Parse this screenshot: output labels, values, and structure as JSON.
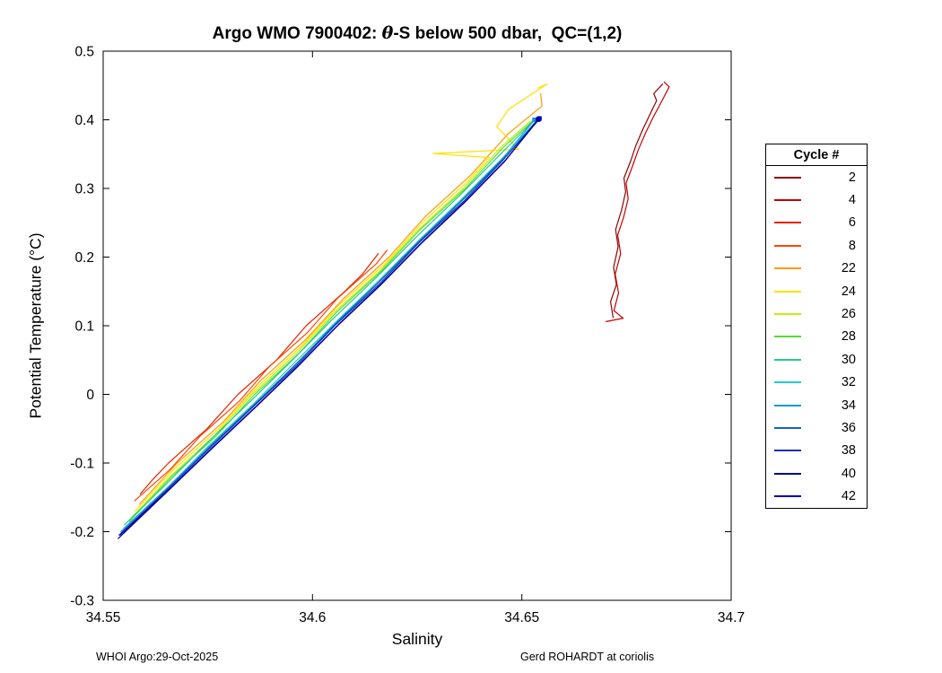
{
  "title": {
    "prefix": "Argo WMO 7900402: ",
    "theta": "θ",
    "suffix": "-S below 500 dbar,  QC=(1,2)"
  },
  "footer": {
    "left": "WHOI Argo:29-Oct-2025",
    "right": "Gerd ROHARDT at coriolis"
  },
  "chart_data": {
    "type": "line",
    "title": "Argo WMO 7900402: θ-S below 500 dbar,  QC=(1,2)",
    "xlabel": "Salinity",
    "ylabel": "Potential Temperature (°C)",
    "xlim": [
      34.55,
      34.7
    ],
    "ylim": [
      -0.3,
      0.5
    ],
    "xticks": [
      34.55,
      34.6,
      34.65,
      34.7
    ],
    "xtick_labels": [
      "34.55",
      "34.6",
      "34.65",
      "34.7"
    ],
    "yticks": [
      -0.3,
      -0.2,
      -0.1,
      0,
      0.1,
      0.2,
      0.3,
      0.4,
      0.5
    ],
    "ytick_labels": [
      "-0.3",
      "-0.2",
      "-0.1",
      "0",
      "0.1",
      "0.2",
      "0.3",
      "0.4",
      "0.5"
    ],
    "grid": false,
    "box": true,
    "legend": {
      "title": "Cycle #",
      "position": "right-outside"
    },
    "series": [
      {
        "name": "2",
        "color": "#8F0000",
        "marker_end": false,
        "points": [
          [
            34.6718,
            0.112
          ],
          [
            34.6712,
            0.135
          ],
          [
            34.6726,
            0.16
          ],
          [
            34.6719,
            0.185
          ],
          [
            34.673,
            0.215
          ],
          [
            34.6724,
            0.24
          ],
          [
            34.6738,
            0.268
          ],
          [
            34.6748,
            0.295
          ],
          [
            34.6744,
            0.315
          ],
          [
            34.676,
            0.34
          ],
          [
            34.6772,
            0.362
          ],
          [
            34.6788,
            0.385
          ],
          [
            34.6806,
            0.408
          ],
          [
            34.6822,
            0.428
          ],
          [
            34.6815,
            0.438
          ],
          [
            34.6836,
            0.452
          ]
        ]
      },
      {
        "name": "4",
        "color": "#C40000",
        "marker_end": false,
        "points": [
          [
            34.6701,
            0.106
          ],
          [
            34.6742,
            0.111
          ],
          [
            34.672,
            0.122
          ],
          [
            34.6731,
            0.148
          ],
          [
            34.6723,
            0.175
          ],
          [
            34.6736,
            0.205
          ],
          [
            34.6729,
            0.232
          ],
          [
            34.6743,
            0.258
          ],
          [
            34.6754,
            0.285
          ],
          [
            34.6749,
            0.308
          ],
          [
            34.6764,
            0.332
          ],
          [
            34.6778,
            0.356
          ],
          [
            34.6795,
            0.38
          ],
          [
            34.6814,
            0.404
          ],
          [
            34.6835,
            0.428
          ],
          [
            34.6852,
            0.448
          ],
          [
            34.684,
            0.455
          ]
        ]
      },
      {
        "name": "6",
        "color": "#E62200",
        "marker_end": false,
        "points": [
          [
            34.5589,
            -0.145
          ],
          [
            34.5617,
            -0.125
          ],
          [
            34.5656,
            -0.1
          ],
          [
            34.5748,
            -0.05
          ],
          [
            34.5822,
            0.0
          ],
          [
            34.5914,
            0.05
          ],
          [
            34.5985,
            0.1
          ],
          [
            34.6077,
            0.15
          ],
          [
            34.6119,
            0.175
          ],
          [
            34.6157,
            0.205
          ]
        ]
      },
      {
        "name": "8",
        "color": "#FF4400",
        "marker_end": false,
        "points": [
          [
            34.5575,
            -0.155
          ],
          [
            34.5659,
            -0.11
          ],
          [
            34.5733,
            -0.06
          ],
          [
            34.5825,
            -0.01
          ],
          [
            34.5896,
            0.04
          ],
          [
            34.5988,
            0.09
          ],
          [
            34.606,
            0.14
          ],
          [
            34.6152,
            0.19
          ],
          [
            34.6178,
            0.21
          ]
        ]
      },
      {
        "name": "22",
        "color": "#FF9900",
        "marker_end": false,
        "points": [
          [
            34.5587,
            -0.16
          ],
          [
            34.5677,
            -0.1
          ],
          [
            34.5787,
            -0.04
          ],
          [
            34.5876,
            0.02
          ],
          [
            34.5984,
            0.08
          ],
          [
            34.6075,
            0.14
          ],
          [
            34.6183,
            0.2
          ],
          [
            34.6271,
            0.26
          ],
          [
            34.6379,
            0.32
          ],
          [
            34.6468,
            0.38
          ],
          [
            34.6548,
            0.42
          ],
          [
            34.6545,
            0.438
          ]
        ]
      },
      {
        "name": "24",
        "color": "#FFE100",
        "marker_end": false,
        "points": [
          [
            34.5576,
            -0.17
          ],
          [
            34.5668,
            -0.11
          ],
          [
            34.5776,
            -0.05
          ],
          [
            34.5867,
            0.01
          ],
          [
            34.5973,
            0.07
          ],
          [
            34.6063,
            0.13
          ],
          [
            34.6173,
            0.19
          ],
          [
            34.6262,
            0.25
          ],
          [
            34.637,
            0.31
          ],
          [
            34.6422,
            0.345
          ],
          [
            34.6288,
            0.351
          ],
          [
            34.6492,
            0.357
          ],
          [
            34.644,
            0.39
          ],
          [
            34.6468,
            0.415
          ],
          [
            34.653,
            0.44
          ],
          [
            34.656,
            0.452
          ],
          [
            34.6538,
            0.446
          ]
        ]
      },
      {
        "name": "26",
        "color": "#BFEE11",
        "marker_end": false,
        "points": [
          [
            34.5567,
            -0.18
          ],
          [
            34.5659,
            -0.12
          ],
          [
            34.5766,
            -0.06
          ],
          [
            34.5856,
            0.0
          ],
          [
            34.5962,
            0.06
          ],
          [
            34.6053,
            0.12
          ],
          [
            34.6161,
            0.18
          ],
          [
            34.6253,
            0.24
          ],
          [
            34.636,
            0.3
          ],
          [
            34.645,
            0.36
          ],
          [
            34.652,
            0.398
          ]
        ]
      },
      {
        "name": "28",
        "color": "#55DD33",
        "marker_end": false,
        "points": [
          [
            34.5563,
            -0.185
          ],
          [
            34.5663,
            -0.12
          ],
          [
            34.5771,
            -0.06
          ],
          [
            34.5862,
            0.0
          ],
          [
            34.5968,
            0.06
          ],
          [
            34.6058,
            0.12
          ],
          [
            34.6165,
            0.18
          ],
          [
            34.6257,
            0.24
          ],
          [
            34.6365,
            0.3
          ],
          [
            34.6456,
            0.36
          ],
          [
            34.6529,
            0.4
          ]
        ]
      },
      {
        "name": "30",
        "color": "#22CC88",
        "marker_end": false,
        "points": [
          [
            34.5551,
            -0.19
          ],
          [
            34.5652,
            -0.13
          ],
          [
            34.5749,
            -0.07
          ],
          [
            34.5852,
            -0.01
          ],
          [
            34.5952,
            0.05
          ],
          [
            34.6049,
            0.11
          ],
          [
            34.6152,
            0.17
          ],
          [
            34.6249,
            0.23
          ],
          [
            34.6352,
            0.29
          ],
          [
            34.6449,
            0.35
          ],
          [
            34.6531,
            0.4
          ]
        ]
      },
      {
        "name": "32",
        "color": "#22CCCC",
        "marker_end": false,
        "points": [
          [
            34.5549,
            -0.195
          ],
          [
            34.5655,
            -0.135
          ],
          [
            34.5752,
            -0.075
          ],
          [
            34.5857,
            -0.015
          ],
          [
            34.5955,
            0.045
          ],
          [
            34.6055,
            0.105
          ],
          [
            34.6157,
            0.165
          ],
          [
            34.6255,
            0.225
          ],
          [
            34.6357,
            0.285
          ],
          [
            34.6455,
            0.345
          ],
          [
            34.6534,
            0.398
          ]
        ]
      },
      {
        "name": "34",
        "color": "#1199DD",
        "marker_end": true,
        "points": [
          [
            34.5542,
            -0.2
          ],
          [
            34.565,
            -0.138
          ],
          [
            34.575,
            -0.078
          ],
          [
            34.5855,
            -0.018
          ],
          [
            34.5958,
            0.042
          ],
          [
            34.6052,
            0.102
          ],
          [
            34.6155,
            0.162
          ],
          [
            34.6252,
            0.222
          ],
          [
            34.6355,
            0.282
          ],
          [
            34.6452,
            0.342
          ],
          [
            34.653,
            0.4
          ]
        ]
      },
      {
        "name": "36",
        "color": "#1166BB",
        "marker_end": false,
        "points": [
          [
            34.5546,
            -0.2
          ],
          [
            34.5657,
            -0.136
          ],
          [
            34.5757,
            -0.076
          ],
          [
            34.586,
            -0.016
          ],
          [
            34.596,
            0.044
          ],
          [
            34.6058,
            0.104
          ],
          [
            34.616,
            0.164
          ],
          [
            34.6258,
            0.224
          ],
          [
            34.636,
            0.284
          ],
          [
            34.6458,
            0.344
          ],
          [
            34.6536,
            0.397
          ]
        ]
      },
      {
        "name": "38",
        "color": "#1133AA",
        "marker_end": true,
        "points": [
          [
            34.5538,
            -0.205
          ],
          [
            34.5654,
            -0.138
          ],
          [
            34.5755,
            -0.078
          ],
          [
            34.5858,
            -0.018
          ],
          [
            34.5962,
            0.042
          ],
          [
            34.6056,
            0.102
          ],
          [
            34.6162,
            0.162
          ],
          [
            34.6256,
            0.222
          ],
          [
            34.6362,
            0.282
          ],
          [
            34.6456,
            0.342
          ],
          [
            34.6538,
            0.4
          ]
        ]
      },
      {
        "name": "40",
        "color": "#000080",
        "marker_end": true,
        "points": [
          [
            34.5536,
            -0.21
          ],
          [
            34.5656,
            -0.14
          ],
          [
            34.5758,
            -0.08
          ],
          [
            34.5862,
            -0.02
          ],
          [
            34.5964,
            0.04
          ],
          [
            34.606,
            0.1
          ],
          [
            34.6164,
            0.16
          ],
          [
            34.626,
            0.22
          ],
          [
            34.6364,
            0.28
          ],
          [
            34.646,
            0.34
          ],
          [
            34.654,
            0.401
          ]
        ]
      },
      {
        "name": "42",
        "color": "#0000B4",
        "marker_end": true,
        "points": [
          [
            34.554,
            -0.205
          ],
          [
            34.5658,
            -0.138
          ],
          [
            34.576,
            -0.078
          ],
          [
            34.5864,
            -0.018
          ],
          [
            34.5966,
            0.042
          ],
          [
            34.6062,
            0.102
          ],
          [
            34.6166,
            0.162
          ],
          [
            34.6262,
            0.222
          ],
          [
            34.6366,
            0.282
          ],
          [
            34.6462,
            0.342
          ],
          [
            34.6542,
            0.402
          ]
        ]
      }
    ]
  }
}
